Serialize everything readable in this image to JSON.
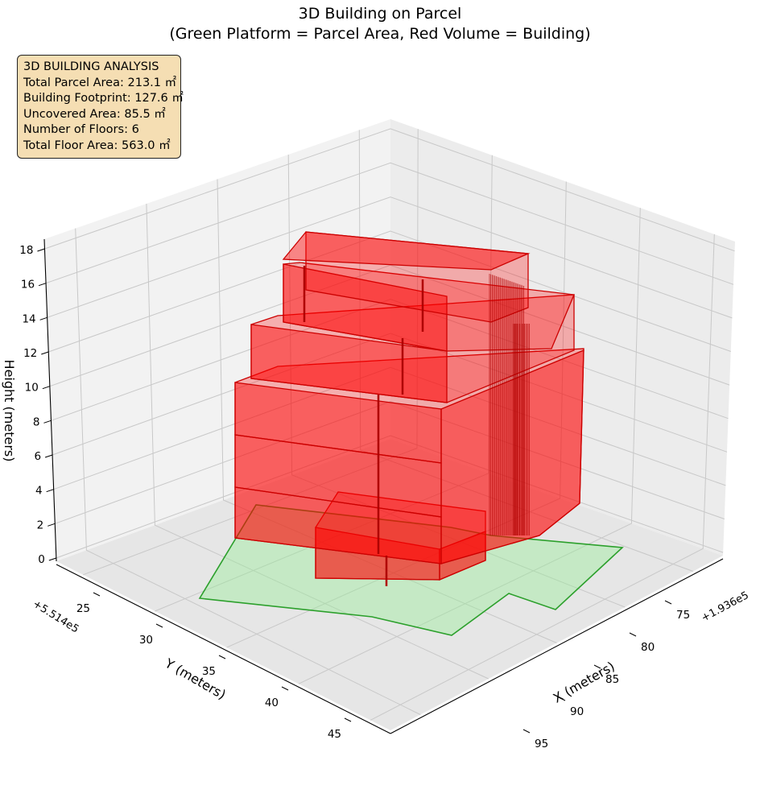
{
  "title": "3D Building on Parcel",
  "subtitle": "(Green Platform = Parcel Area, Red Volume = Building)",
  "info_box": {
    "heading": "3D BUILDING ANALYSIS",
    "lines": [
      "Total Parcel Area: 213.1 ㎡",
      "Building Footprint: 127.6 ㎡",
      "Uncovered Area: 85.5 ㎡",
      "Number of Floors: 6",
      "Total Floor Area: 563.0 ㎡"
    ]
  },
  "chart_data": {
    "type": "3d-extruded-polygon",
    "title": "3D Building on Parcel",
    "subtitle": "(Green Platform = Parcel Area, Red Volume = Building)",
    "axes": {
      "x": {
        "label": "X (meters)",
        "offset_label": "+1.936e5",
        "ticks": [
          "75",
          "80",
          "85",
          "90",
          "95"
        ]
      },
      "y": {
        "label": "Y (meters)",
        "offset_label": "+5.514e5",
        "ticks": [
          "25",
          "30",
          "35",
          "40",
          "45"
        ]
      },
      "z": {
        "label": "Height (meters)",
        "ticks": [
          "0",
          "2",
          "4",
          "6",
          "8",
          "10",
          "12",
          "14",
          "16",
          "18"
        ],
        "range": [
          0,
          18
        ]
      }
    },
    "grid": true,
    "parcel": {
      "area_m2": 213.1,
      "color": "#90ee90",
      "edge_color": "#2ca02c"
    },
    "building": {
      "footprint_m2": 127.6,
      "uncovered_m2": 85.5,
      "floors": 6,
      "total_floor_area_m2": 563.0,
      "floor_height_m": [
        0,
        3,
        6,
        9,
        12,
        15,
        18
      ],
      "color": "#ff0000"
    }
  }
}
